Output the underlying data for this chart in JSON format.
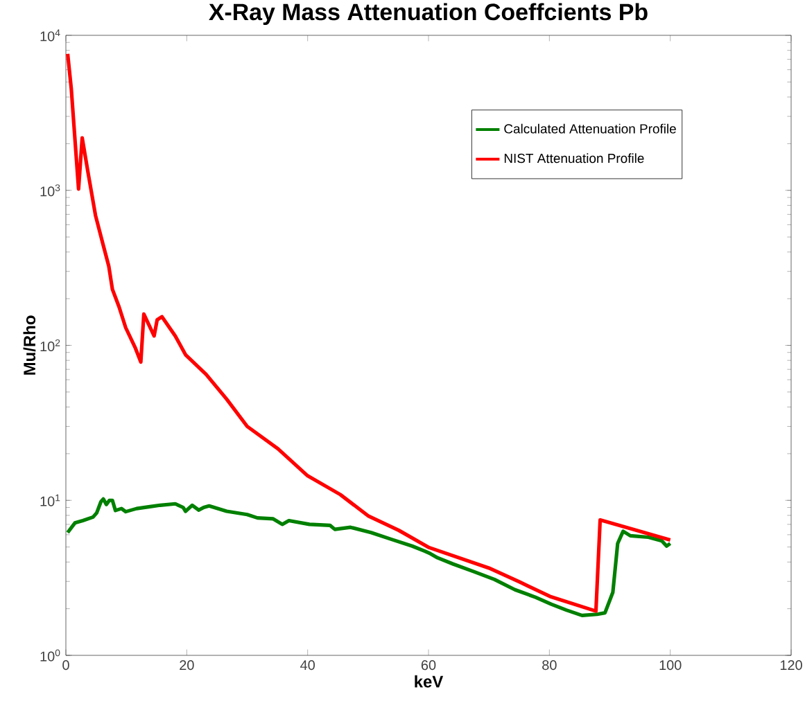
{
  "chart_data": {
    "type": "line",
    "title": "X-Ray Mass Attenuation Coeffcients Pb",
    "xlabel": "keV",
    "ylabel": "Mu/Rho",
    "log": "y",
    "legend": "top right",
    "grid": false,
    "line_style": "solid",
    "marker": "none",
    "xlim": [
      0,
      120
    ],
    "xticks": [
      0,
      20,
      40,
      60,
      80,
      100,
      120
    ],
    "ylim": [
      1,
      10000
    ],
    "yticks": [
      {
        "value": 1,
        "label": "10$^{0}$"
      },
      {
        "value": 10,
        "label": "10$^{1}$"
      },
      {
        "value": 100,
        "label": "10$^{2}$"
      },
      {
        "value": 1000,
        "label": "10$^{3}$"
      },
      {
        "value": 10000,
        "label": "10$^{4}$"
      }
    ],
    "series": [
      {
        "name": "Calculated Attenuation Profile",
        "color": "#008000",
        "x": [
          0.3,
          1.5,
          2.8,
          4.5,
          5.1,
          5.8,
          6.2,
          6.7,
          7.2,
          7.7,
          8.2,
          9.2,
          9.9,
          11.7,
          13.9,
          15.6,
          18.1,
          19.4,
          19.8,
          20.9,
          22,
          22.8,
          23.7,
          26.6,
          30,
          31.7,
          34.3,
          35.8,
          36.9,
          40.3,
          43.7,
          44.5,
          47.1,
          50.5,
          53.9,
          57.3,
          59.4,
          60.3,
          61.5,
          64.1,
          67.5,
          70.9,
          74.3,
          77.7,
          80.3,
          82.8,
          85.4,
          87.9,
          89.2,
          90.5,
          91.3,
          92.2,
          93.4,
          96.4,
          98.6,
          99.4,
          100
        ],
        "values": [
          6.2,
          7.15,
          7.4,
          7.8,
          8.3,
          9.8,
          10.2,
          9.4,
          10,
          10,
          8.6,
          8.85,
          8.45,
          8.85,
          9.1,
          9.3,
          9.5,
          9.0,
          8.5,
          9.3,
          8.65,
          9.0,
          9.2,
          8.5,
          8.1,
          7.7,
          7.6,
          7.0,
          7.4,
          7.0,
          6.9,
          6.5,
          6.7,
          6.2,
          5.6,
          5.07,
          4.7,
          4.53,
          4.26,
          3.88,
          3.47,
          3.09,
          2.65,
          2.37,
          2.14,
          1.96,
          1.81,
          1.84,
          1.88,
          2.55,
          5.27,
          6.32,
          5.91,
          5.78,
          5.48,
          5.07,
          5.27
        ]
      },
      {
        "name": "NIST Attenuation Profile",
        "color": "#ff0000",
        "x": [
          0.3,
          0.9,
          2.1,
          2.7,
          3.7,
          4.9,
          6.2,
          7.1,
          7.7,
          8.8,
          9.9,
          11.5,
          12.4,
          12.9,
          14.6,
          15.1,
          15.9,
          18.1,
          19.8,
          23.2,
          26.6,
          30,
          35.1,
          40,
          45.4,
          50,
          55.1,
          60.1,
          70,
          75.1,
          80.1,
          87.7,
          88.4,
          100
        ],
        "values": [
          7600,
          4500,
          1020,
          2180,
          1280,
          690,
          440,
          324,
          230,
          177,
          130,
          96,
          78,
          159,
          115,
          146,
          153,
          115,
          87,
          65,
          45,
          30,
          21.5,
          14.4,
          10.9,
          7.95,
          6.4,
          4.96,
          3.66,
          2.97,
          2.4,
          1.93,
          7.48,
          5.55
        ]
      }
    ]
  }
}
